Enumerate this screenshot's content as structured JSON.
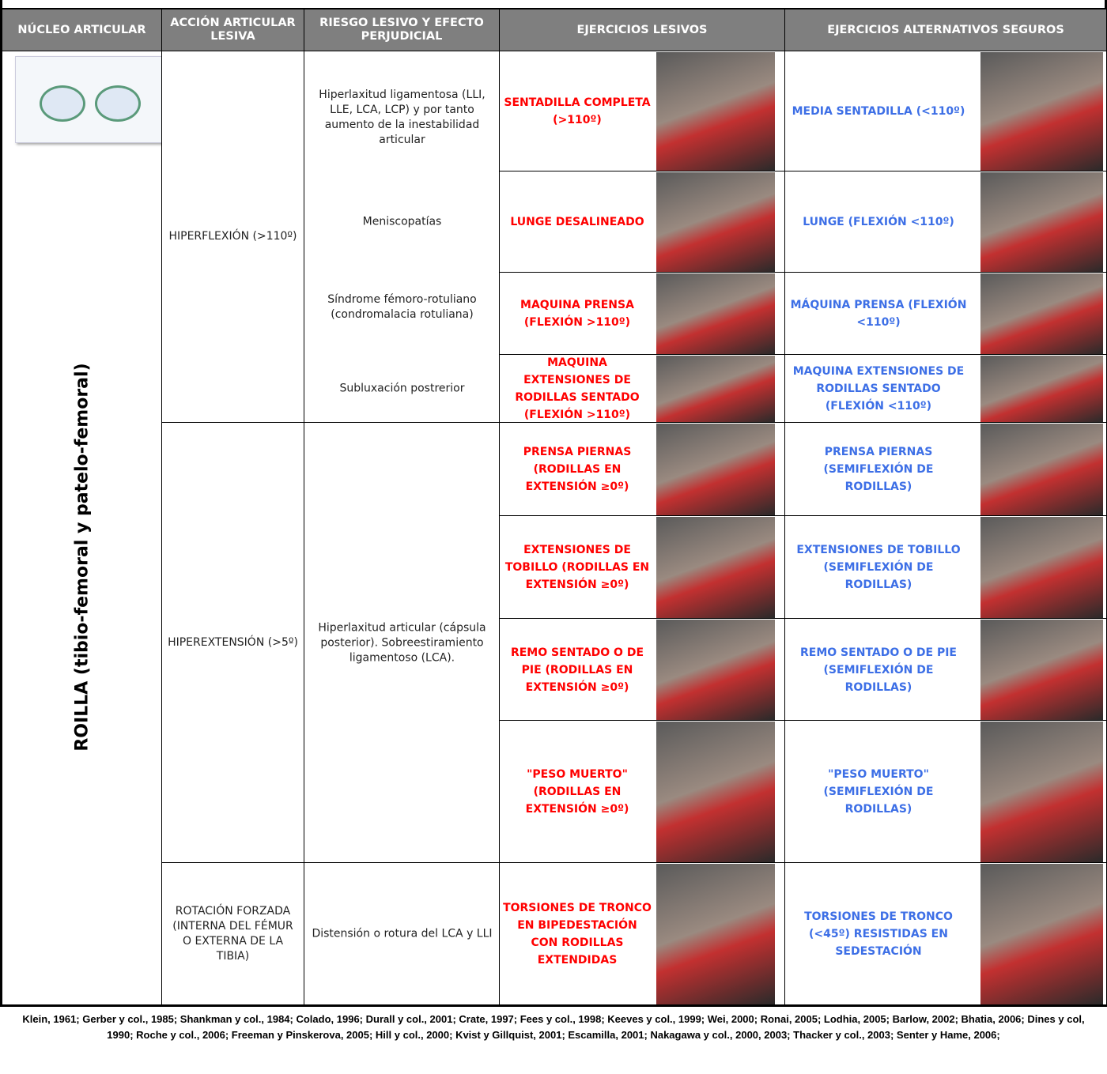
{
  "table": {
    "headers": [
      "NÚCLEO ARTICULAR",
      "ACCIÓN ARTICULAR LESIVA",
      "RIESGO LESIVO Y EFECTO PERJUDICIAL",
      "EJERCICIOS LESIVOS",
      "EJERCICIOS ALTERNATIVOS SEGUROS"
    ],
    "joint": "ROILLA (tibio-femoral y patelo-femoral)",
    "groups": [
      {
        "action": "HIPERFLEXIÓN (>110º)",
        "risks": [
          "Hiperlaxitud ligamentosa (LLI, LLE, LCA, LCP) y por tanto aumento de la inestabilidad articular",
          "Meniscopatías",
          "Síndrome fémoro-rotuliano (condromalacia rotuliana)",
          "Subluxación postrerior"
        ],
        "exercises": [
          {
            "harmful": "SENTADILLA COMPLETA (>110º)",
            "safe": "MEDIA SENTADILLA (<110º)"
          },
          {
            "harmful": "LUNGE DESALINEADO",
            "safe": "LUNGE (FLEXIÓN <110º)"
          },
          {
            "harmful": "MAQUINA PRENSA (FLEXIÓN >110º)",
            "safe": "MÁQUINA PRENSA (FLEXIÓN <110º)"
          },
          {
            "harmful": "MAQUINA EXTENSIONES DE RODILLAS SENTADO (FLEXIÓN >110º)",
            "safe": "MAQUINA EXTENSIONES DE RODILLAS SENTADO (FLEXIÓN <110º)"
          }
        ]
      },
      {
        "action": "HIPEREXTENSIÓN (>5º)",
        "risks": [
          "Hiperlaxitud articular (cápsula posterior). Sobreestiramiento ligamentoso (LCA)."
        ],
        "exercises": [
          {
            "harmful": "PRENSA PIERNAS (RODILLAS EN EXTENSIÓN ≥0º)",
            "safe": "PRENSA PIERNAS (SEMIFLEXIÓN DE RODILLAS)"
          },
          {
            "harmful": "EXTENSIONES DE TOBILLO (RODILLAS EN EXTENSIÓN ≥0º)",
            "safe": "EXTENSIONES DE TOBILLO (SEMIFLEXIÓN DE RODILLAS)"
          },
          {
            "harmful": "REMO SENTADO O DE PIE (RODILLAS EN EXTENSIÓN ≥0º)",
            "safe": "REMO SENTADO O DE PIE (SEMIFLEXIÓN DE RODILLAS)"
          },
          {
            "harmful": "\"PESO MUERTO\" (RODILLAS EN EXTENSIÓN ≥0º)",
            "safe": "\"PESO MUERTO\" (SEMIFLEXIÓN DE RODILLAS)"
          }
        ]
      },
      {
        "action": "ROTACIÓN FORZADA (INTERNA DEL FÉMUR O EXTERNA DE LA TIBIA)",
        "risks": [
          "Distensión o rotura del LCA y LLI"
        ],
        "exercises": [
          {
            "harmful": "TORSIONES DE TRONCO EN BIPEDESTACIÓN CON RODILLAS EXTENDIDAS",
            "safe": "TORSIONES DE TRONCO (<45º) RESISTIDAS EN SEDESTACIÓN"
          }
        ]
      }
    ]
  },
  "references": "Klein, 1961; Gerber y col., 1985; Shankman y col., 1984; Colado, 1996; Durall y col., 2001; Crate, 1997; Fees y col., 1998; Keeves y col., 1999; Wei, 2000; Ronai, 2005; Lodhia, 2005; Barlow, 2002; Bhatia, 2006;  Dines y col, 1990;  Roche y col., 2006; Freeman y Pinskerova, 2005; Hill y col., 2000; Kvist y Gillquist, 2001; Escamilla, 2001; Nakagawa y col., 2000, 2003; Thacker y col., 2003; Senter y Hame, 2006;"
}
